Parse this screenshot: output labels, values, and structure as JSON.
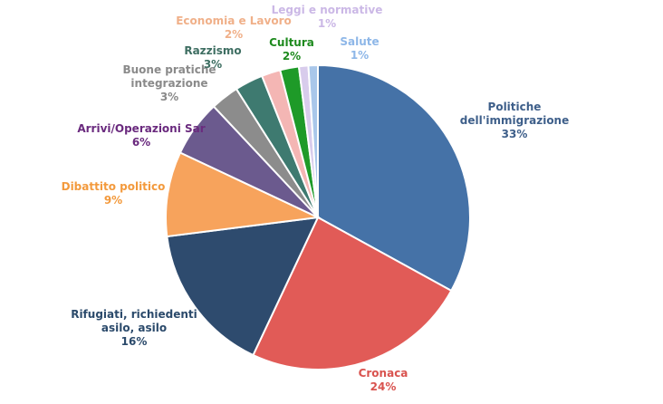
{
  "chart_data": {
    "type": "pie",
    "title": "",
    "slices": [
      {
        "name": "Politiche dell'immigrazione",
        "label_lines": [
          "Politiche",
          "dell'immigrazione",
          "33%"
        ],
        "value": 33,
        "color": "#4572A7"
      },
      {
        "name": "Cronaca",
        "label_lines": [
          "Cronaca",
          "24%"
        ],
        "value": 24,
        "color": "#E15B57"
      },
      {
        "name": "Rifugiati, richiedenti asilo, asilo",
        "label_lines": [
          "Rifugiati, richiedenti",
          "asilo, asilo",
          "16%"
        ],
        "value": 16,
        "color": "#2E4B6E"
      },
      {
        "name": "Dibattito politico",
        "label_lines": [
          "Dibattito politico",
          "9%"
        ],
        "value": 9,
        "color": "#F7A35C"
      },
      {
        "name": "Arrivi/Operazioni Sar",
        "label_lines": [
          "Arrivi/Operazioni Sar",
          "6%"
        ],
        "value": 6,
        "color": "#6B5A8E"
      },
      {
        "name": "Buone pratiche integrazione",
        "label_lines": [
          "Buone pratiche",
          "integrazione",
          "3%"
        ],
        "value": 3,
        "color": "#8C8C8C"
      },
      {
        "name": "Razzismo",
        "label_lines": [
          "Razzismo",
          "3%"
        ],
        "value": 3,
        "color": "#3E7A70"
      },
      {
        "name": "Economia e Lavoro",
        "label_lines": [
          "Economia e Lavoro",
          "2%"
        ],
        "value": 2,
        "color": "#F4B6B4"
      },
      {
        "name": "Cultura",
        "label_lines": [
          "Cultura",
          "2%"
        ],
        "value": 2,
        "color": "#1E9A28"
      },
      {
        "name": "Leggi e normative",
        "label_lines": [
          "Leggi e normative",
          "1%"
        ],
        "value": 1,
        "color": "#D8CCEC"
      },
      {
        "name": "Salute",
        "label_lines": [
          "Salute",
          "1%"
        ],
        "value": 1,
        "color": "#A9C7EA"
      }
    ],
    "label_colors": [
      "#3E5F8A",
      "#D9534F",
      "#2B4A6B",
      "#F39A3D",
      "#6A2A7E",
      "#8A8A8A",
      "#3E6E62",
      "#F0B089",
      "#1E8A1E",
      "#CBB8E6",
      "#8EB7E8"
    ]
  }
}
